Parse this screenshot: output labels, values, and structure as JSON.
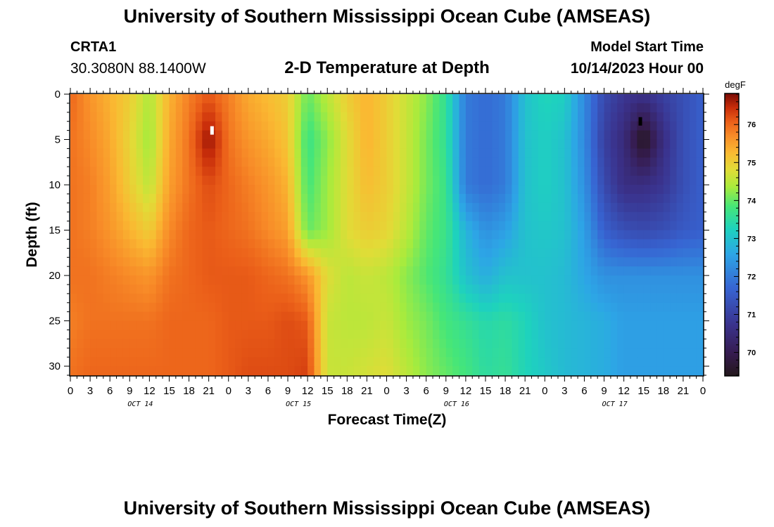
{
  "page": {
    "title_top": "University of Southern Mississippi Ocean Cube (AMSEAS)",
    "title_bottom": "University of Southern Mississippi Ocean Cube (AMSEAS)",
    "station_id": "CRTA1",
    "station_coords": "30.3080N  88.1400W",
    "chart_title": "2-D Temperature at Depth",
    "model_start_label": "Model Start Time",
    "model_start_value": "10/14/2023 Hour 00"
  },
  "chart_data": {
    "type": "heatmap",
    "title": "2-D Temperature at Depth",
    "xlabel": "Forecast Time(Z)",
    "ylabel": "Depth (ft)",
    "x_range_hours": [
      0,
      96
    ],
    "y_range_ft": [
      0,
      31
    ],
    "y_reversed": true,
    "x_tick_labels": [
      "0",
      "3",
      "6",
      "9",
      "12",
      "15",
      "18",
      "21",
      "0",
      "3",
      "6",
      "9",
      "12",
      "15",
      "18",
      "21",
      "0",
      "3",
      "6",
      "9",
      "12",
      "15",
      "18",
      "21",
      "0",
      "3",
      "6",
      "9",
      "12",
      "15",
      "18",
      "21",
      "0"
    ],
    "day_labels": [
      "OCT 14",
      "OCT 15",
      "OCT 16",
      "OCT 17"
    ],
    "y_tick_labels": [
      "0",
      "5",
      "10",
      "15",
      "20",
      "25",
      "30"
    ],
    "y_tick_values": [
      0,
      5,
      10,
      15,
      20,
      25,
      30
    ],
    "colorbar": {
      "units": "degF",
      "range": [
        69.4,
        76.8
      ],
      "tick_labels": [
        "70",
        "71",
        "72",
        "73",
        "74",
        "75",
        "76"
      ],
      "tick_values": [
        70,
        71,
        72,
        73,
        74,
        75,
        76
      ]
    },
    "markers": [
      {
        "name": "max",
        "hour": 21.5,
        "depth_ft": 4,
        "color": "#ffffff"
      },
      {
        "name": "min",
        "hour": 86.5,
        "depth_ft": 3,
        "color": "#000000"
      }
    ],
    "hours": [
      0,
      3,
      6,
      9,
      12,
      15,
      18,
      21,
      24,
      27,
      30,
      33,
      36,
      39,
      42,
      45,
      48,
      51,
      54,
      57,
      60,
      63,
      66,
      69,
      72,
      75,
      78,
      81,
      84,
      87,
      90,
      93,
      96
    ],
    "depths_ft": [
      0,
      5,
      10,
      15,
      20,
      25,
      31
    ],
    "temperature_degF": [
      [
        76.0,
        75.6,
        75.3,
        75.0,
        74.4,
        75.3,
        75.8,
        76.1,
        75.8,
        75.4,
        75.2,
        75.0,
        74.0,
        74.5,
        75.0,
        75.3,
        75.0,
        74.6,
        74.2,
        73.6,
        72.0,
        71.8,
        72.0,
        73.0,
        73.3,
        73.2,
        72.2,
        71.2,
        70.8,
        70.7,
        71.0,
        71.3,
        71.6
      ],
      [
        75.9,
        75.7,
        75.4,
        74.9,
        74.3,
        75.4,
        75.9,
        76.7,
        75.9,
        75.6,
        75.4,
        75.1,
        73.7,
        74.2,
        74.8,
        75.3,
        75.0,
        74.6,
        74.1,
        73.6,
        72.0,
        71.8,
        72.0,
        73.0,
        73.2,
        73.0,
        72.2,
        71.0,
        70.5,
        69.4,
        70.6,
        71.3,
        71.6
      ],
      [
        75.9,
        75.8,
        75.5,
        75.0,
        74.5,
        75.5,
        75.9,
        76.2,
        76.0,
        75.8,
        75.6,
        75.3,
        73.8,
        74.3,
        74.8,
        75.2,
        75.0,
        74.6,
        74.1,
        73.7,
        72.0,
        71.8,
        72.0,
        73.0,
        73.2,
        73.0,
        72.3,
        71.2,
        70.6,
        70.6,
        70.8,
        71.3,
        71.6
      ],
      [
        75.9,
        75.8,
        75.6,
        75.3,
        75.0,
        75.7,
        76.0,
        76.1,
        76.0,
        75.9,
        75.7,
        75.5,
        74.0,
        74.3,
        74.8,
        75.0,
        74.9,
        74.5,
        74.0,
        73.7,
        72.8,
        72.3,
        72.5,
        73.0,
        73.1,
        73.0,
        72.5,
        71.6,
        71.3,
        71.2,
        71.3,
        71.5,
        71.6
      ],
      [
        75.9,
        75.9,
        75.8,
        75.7,
        75.6,
        75.9,
        76.0,
        76.1,
        76.1,
        76.1,
        76.0,
        75.9,
        75.6,
        74.8,
        74.5,
        74.6,
        74.5,
        74.2,
        73.9,
        73.6,
        73.0,
        72.7,
        73.0,
        73.0,
        73.0,
        72.9,
        72.6,
        72.3,
        72.3,
        72.3,
        72.3,
        72.3,
        72.3
      ],
      [
        75.8,
        75.9,
        75.9,
        75.9,
        75.9,
        76.0,
        76.0,
        76.0,
        76.1,
        76.1,
        76.1,
        76.2,
        76.1,
        74.6,
        74.5,
        74.5,
        74.6,
        74.3,
        74.1,
        73.8,
        73.6,
        73.4,
        73.5,
        73.3,
        73.0,
        72.9,
        72.8,
        72.7,
        72.5,
        72.5,
        72.5,
        72.5,
        72.5
      ],
      [
        75.9,
        76.0,
        76.0,
        76.0,
        76.0,
        76.0,
        76.0,
        76.0,
        76.1,
        76.2,
        76.2,
        76.2,
        76.3,
        74.6,
        74.6,
        74.7,
        74.8,
        74.5,
        74.2,
        74.0,
        73.8,
        73.5,
        73.6,
        73.3,
        73.1,
        72.9,
        72.8,
        72.7,
        72.5,
        72.5,
        72.5,
        72.5,
        72.5
      ]
    ]
  }
}
